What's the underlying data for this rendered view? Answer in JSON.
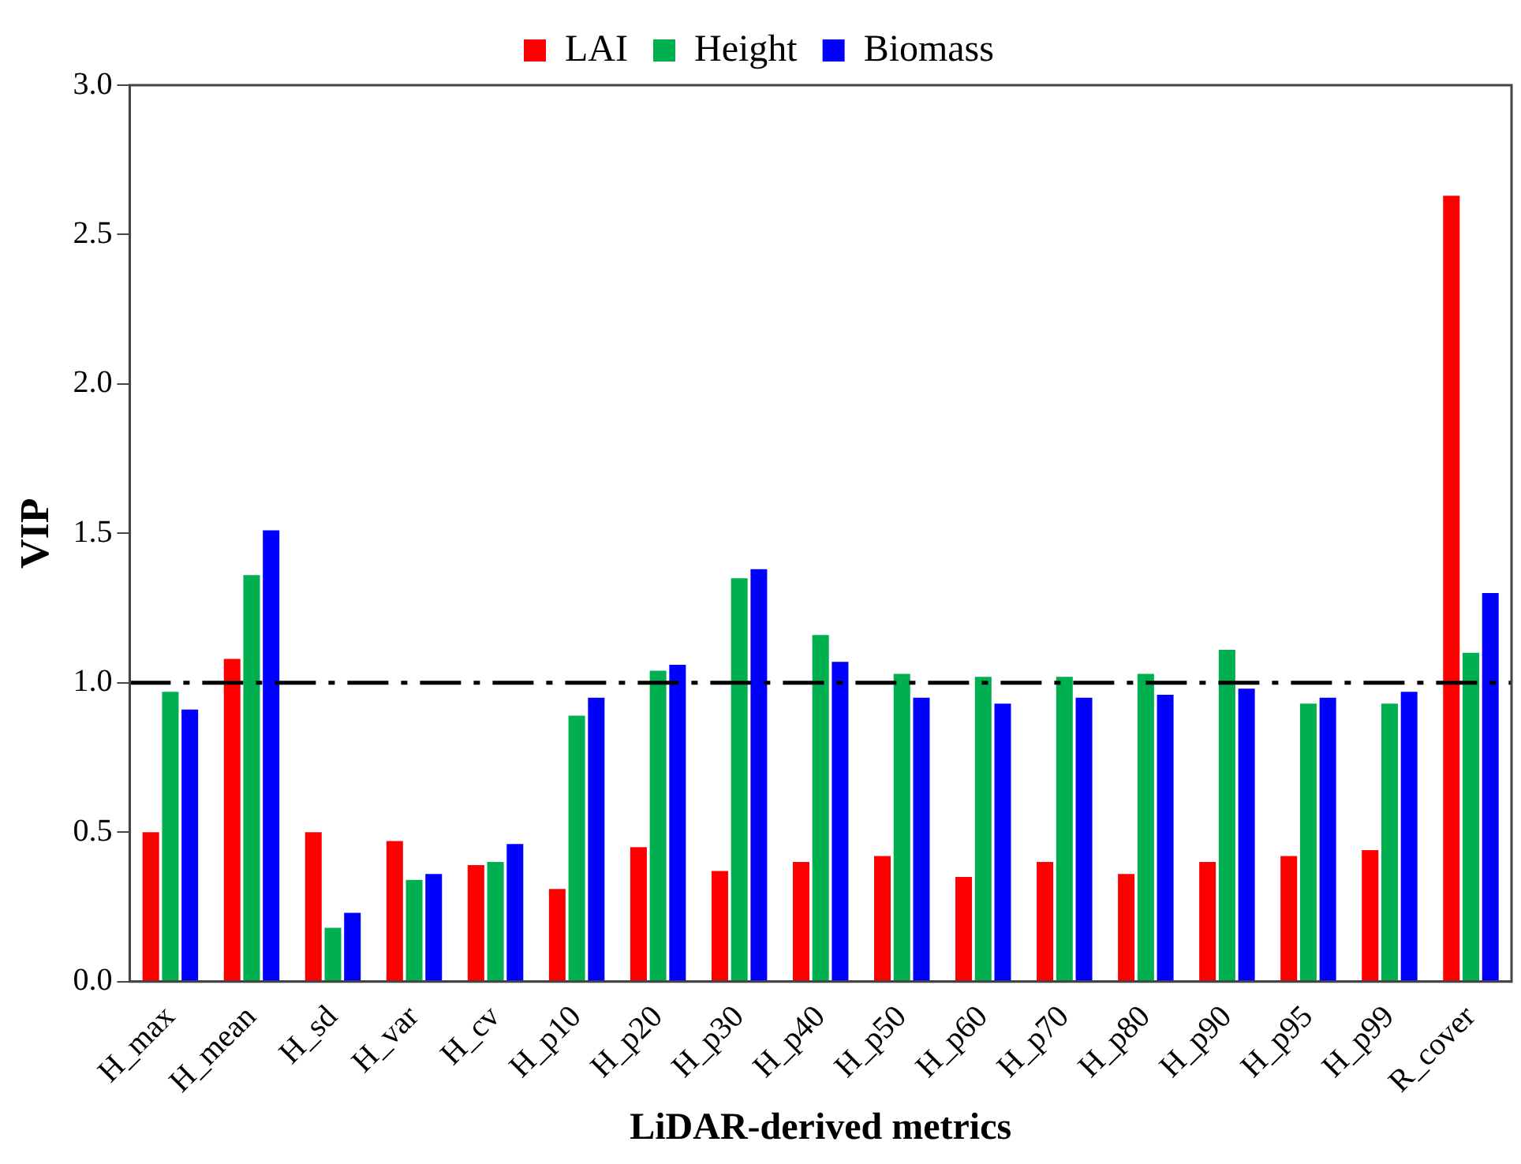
{
  "chart_data": {
    "type": "bar",
    "xlabel": "LiDAR-derived metrics",
    "ylabel": "VIP",
    "categories": [
      "H_max",
      "H_mean",
      "H_sd",
      "H_var",
      "H_cv",
      "H_p10",
      "H_p20",
      "H_p30",
      "H_p40",
      "H_p50",
      "H_p60",
      "H_p70",
      "H_p80",
      "H_p90",
      "H_p95",
      "H_p99",
      "R_cover"
    ],
    "series": [
      {
        "name": "LAI",
        "color": "#ff0000",
        "values": [
          0.5,
          1.08,
          0.5,
          0.47,
          0.39,
          0.31,
          0.45,
          0.37,
          0.4,
          0.42,
          0.35,
          0.4,
          0.36,
          0.4,
          0.42,
          0.44,
          2.63
        ]
      },
      {
        "name": "Height",
        "color": "#00b050",
        "values": [
          0.97,
          1.36,
          0.18,
          0.34,
          0.4,
          0.89,
          1.04,
          1.35,
          1.16,
          1.03,
          1.02,
          1.02,
          1.03,
          1.11,
          0.93,
          0.93,
          1.1
        ]
      },
      {
        "name": "Biomass",
        "color": "#0000ff",
        "values": [
          0.91,
          1.51,
          0.23,
          0.36,
          0.46,
          0.95,
          1.06,
          1.38,
          1.07,
          0.95,
          0.93,
          0.95,
          0.96,
          0.98,
          0.95,
          0.97,
          1.3
        ]
      }
    ],
    "ylim": [
      0,
      3
    ],
    "yticks": [
      {
        "value": 0,
        "label": "0.0"
      },
      {
        "value": 0.5,
        "label": "0.5"
      },
      {
        "value": 1,
        "label": "1.0"
      },
      {
        "value": 1.5,
        "label": "1.5"
      },
      {
        "value": 2,
        "label": "2.0"
      },
      {
        "value": 2.5,
        "label": "2.5"
      },
      {
        "value": 3,
        "label": "3.0"
      }
    ],
    "ref_lines": [
      {
        "axis": "y",
        "value": 1,
        "color": "#000000",
        "line_style": "dashdot"
      }
    ],
    "grid": false,
    "legend": "top"
  }
}
